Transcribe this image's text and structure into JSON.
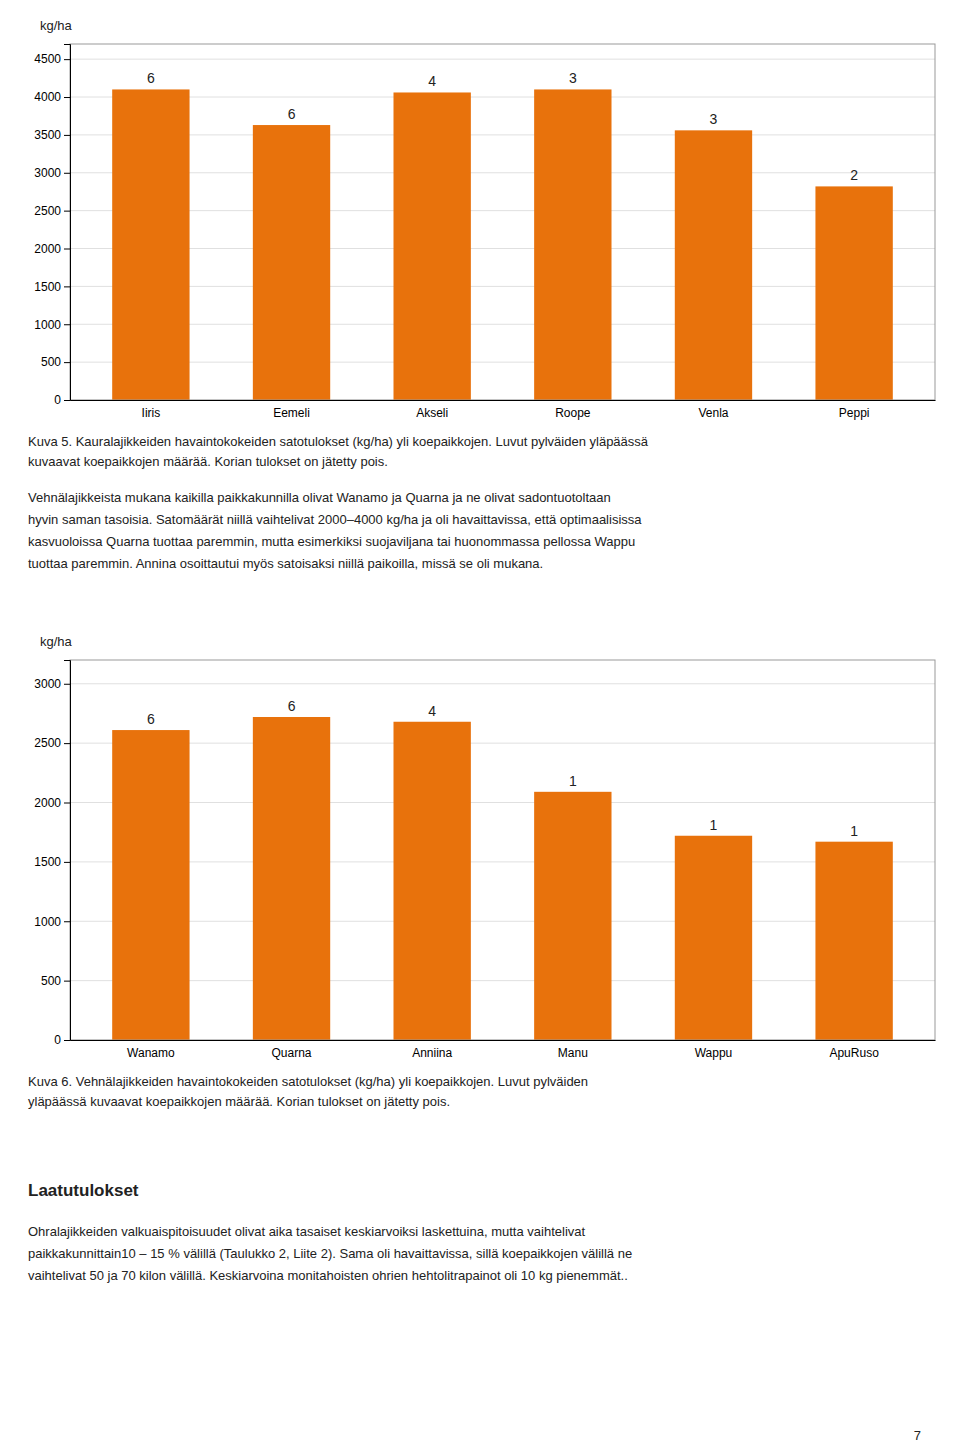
{
  "chart_data": [
    {
      "type": "bar",
      "title": [
        "Kuva 5. Kauralajikkeiden havaintokokeiden satotulokset (kg/ha) yli koepaikkojen. Luvut pylväiden yläpäässä",
        "kuvaavat koepaikkojen määrää. Korian tulokset on jätetty pois."
      ],
      "ylabel": "kg/ha",
      "categories": [
        "Iiris",
        "Eemeli",
        "Akseli",
        "Roope",
        "Venla",
        "Peppi"
      ],
      "values": [
        4100,
        3630,
        4060,
        4100,
        3560,
        2820
      ],
      "annotations": [
        "6",
        "6",
        "4",
        "3",
        "3",
        "2"
      ],
      "color": "#E8720C",
      "ylim": [
        0,
        4700
      ],
      "yticks": [
        0,
        500,
        1000,
        1500,
        2000,
        2500,
        3000,
        3500,
        4000,
        4500
      ],
      "grid": true
    },
    {
      "type": "bar",
      "title": [
        "Kuva 6. Vehnälajikkeiden havaintokokeiden satotulokset (kg/ha) yli koepaikkojen. Luvut pylväiden",
        "yläpäässä kuvaavat koepaikkojen määrää. Korian tulokset on jätetty pois."
      ],
      "ylabel": "kg/ha",
      "categories": [
        "Wanamo",
        "Quarna",
        "Anniina",
        "Manu",
        "Wappu",
        "ApuRuso"
      ],
      "values": [
        2610,
        2720,
        2680,
        2090,
        1720,
        1670
      ],
      "annotations": [
        "6",
        "6",
        "4",
        "1",
        "1",
        "1"
      ],
      "color": "#E8720C",
      "ylim": [
        0,
        3200
      ],
      "yticks": [
        0,
        500,
        1000,
        1500,
        2000,
        2500,
        3000
      ],
      "grid": true
    }
  ],
  "text_between": [
    "Vehnälajikkeista mukana kaikilla paikkakunnilla olivat Wanamo ja Quarna ja ne olivat sadontuotoltaan",
    "hyvin saman tasoisia. Satomäärät niillä vaihtelivat 2000–4000 kg/ha ja oli havaittavissa, että optimaalisissa",
    "kasvuoloissa Quarna tuottaa paremmin, mutta esimerkiksi suojaviljana tai huonommassa pellossa Wappu",
    "tuottaa paremmin. Annina osoittautui myös satoisaksi niillä paikoilla, missä se oli mukana."
  ],
  "section_title": "Laatutulokset",
  "section_text": [
    "Ohralajikkeiden valkuaispitoisuudet olivat aika tasaiset keskiarvoiksi laskettuina, mutta vaihtelivat",
    "paikkakunnittain10 – 15 % välillä (Taulukko 2, Liite 2). Sama oli havaittavissa, sillä koepaikkojen välillä ne",
    "vaihtelivat 50 ja 70 kilon välillä. Keskiarvoina monitahoisten ohrien hehtolitrapainot oli 10 kg pienemmät.."
  ],
  "page_number": "7"
}
